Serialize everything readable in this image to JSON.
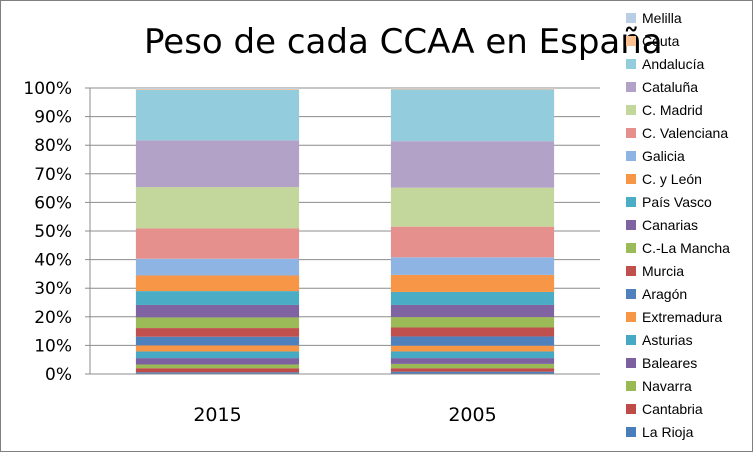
{
  "chart_data": {
    "type": "bar",
    "stacked": "percent",
    "title": "Peso de cada CCAA en España",
    "xlabel": "",
    "ylabel": "",
    "categories": [
      "2015",
      "2005"
    ],
    "ylim": [
      0,
      100
    ],
    "yticks": [
      "0%",
      "10%",
      "20%",
      "30%",
      "40%",
      "50%",
      "60%",
      "70%",
      "80%",
      "90%",
      "100%"
    ],
    "grid": true,
    "legend_position": "right",
    "series": [
      {
        "name": "La Rioja",
        "color": "#4a7ebb",
        "values": [
          0.6,
          0.8
        ]
      },
      {
        "name": "Cantabria",
        "color": "#be4b48",
        "values": [
          1.4,
          1.2
        ]
      },
      {
        "name": "Navarra",
        "color": "#98b954",
        "values": [
          1.3,
          1.5
        ]
      },
      {
        "name": "Baleares",
        "color": "#7d60a0",
        "values": [
          2.2,
          2.0
        ]
      },
      {
        "name": "Asturias",
        "color": "#46aac5",
        "values": [
          2.3,
          2.3
        ]
      },
      {
        "name": "Extremadura",
        "color": "#f79646",
        "values": [
          2.1,
          2.0
        ]
      },
      {
        "name": "Aragón",
        "color": "#4f81bd",
        "values": [
          3.0,
          3.2
        ]
      },
      {
        "name": "Murcia",
        "color": "#c0504d",
        "values": [
          3.0,
          3.1
        ]
      },
      {
        "name": "C.-La Mancha",
        "color": "#9bbb59",
        "values": [
          3.7,
          3.6
        ]
      },
      {
        "name": "Canarias",
        "color": "#8064a2",
        "values": [
          4.3,
          4.2
        ]
      },
      {
        "name": "País Vasco",
        "color": "#4bacc6",
        "values": [
          4.8,
          4.5
        ]
      },
      {
        "name": "C. y León",
        "color": "#f79646",
        "values": [
          5.4,
          5.9
        ]
      },
      {
        "name": "Galicia",
        "color": "#8eb4e3",
        "values": [
          5.8,
          6.1
        ]
      },
      {
        "name": "C. Valenciana",
        "color": "#e6908d",
        "values": [
          10.5,
          10.6
        ]
      },
      {
        "name": "C. Madrid",
        "color": "#c3d69b",
        "values": [
          14.3,
          13.5
        ]
      },
      {
        "name": "Cataluña",
        "color": "#b3a2c7",
        "values": [
          16.2,
          16.1
        ]
      },
      {
        "name": "Andalucía",
        "color": "#93cddd",
        "values": [
          17.5,
          17.9
        ]
      },
      {
        "name": "Ceuta",
        "color": "#fac090",
        "values": [
          0.3,
          0.3
        ]
      },
      {
        "name": "Melilla",
        "color": "#b9cde5",
        "values": [
          0.3,
          0.2
        ]
      }
    ]
  }
}
